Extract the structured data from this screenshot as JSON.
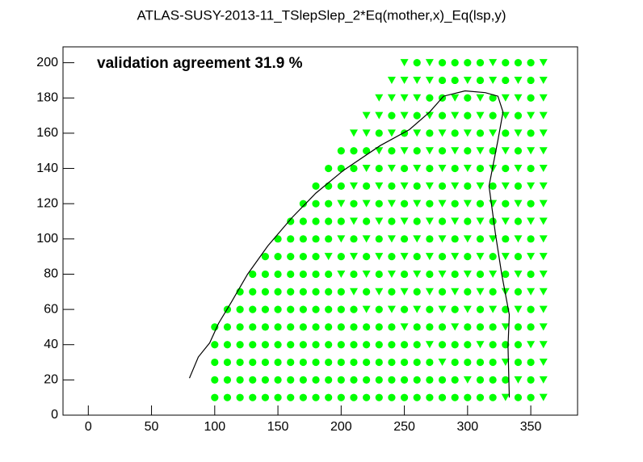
{
  "chart_data": {
    "type": "scatter",
    "title": "ATLAS-SUSY-2013-11_TSlepSlep_2*Eq(mother,x)_Eq(lsp,y)",
    "annotation": "validation agreement 31.9 %",
    "xlim": [
      -20,
      387
    ],
    "ylim": [
      0,
      209
    ],
    "xticks": [
      0,
      50,
      100,
      150,
      200,
      250,
      300,
      350
    ],
    "yticks": [
      0,
      20,
      40,
      60,
      80,
      100,
      120,
      140,
      160,
      180,
      200
    ],
    "grid": false,
    "series": [
      {
        "marker": "circle",
        "color": "#00ff00",
        "x": [
          260,
          280,
          290,
          300,
          310,
          330,
          340,
          350,
          280,
          290,
          310,
          330,
          350,
          270,
          280,
          300,
          320,
          350,
          240,
          260,
          280,
          300,
          320,
          340,
          230,
          250,
          270,
          290,
          310,
          330,
          350,
          200,
          210,
          220,
          240,
          260,
          280,
          300,
          320,
          340,
          190,
          200,
          210,
          230,
          250,
          270,
          290,
          310,
          330,
          350,
          180,
          190,
          200,
          220,
          240,
          260,
          280,
          300,
          320,
          340,
          170,
          180,
          190,
          210,
          230,
          250,
          270,
          290,
          310,
          330,
          350,
          160,
          170,
          180,
          190,
          200,
          220,
          240,
          260,
          280,
          300,
          320,
          340,
          150,
          160,
          170,
          180,
          190,
          210,
          230,
          250,
          270,
          290,
          310,
          330,
          350,
          140,
          150,
          160,
          170,
          180,
          200,
          220,
          240,
          260,
          280,
          300,
          320,
          340,
          130,
          140,
          150,
          160,
          170,
          180,
          190,
          210,
          230,
          250,
          270,
          290,
          310,
          330,
          350,
          120,
          130,
          140,
          150,
          160,
          170,
          180,
          190,
          200,
          220,
          240,
          260,
          280,
          300,
          320,
          340,
          110,
          120,
          130,
          140,
          150,
          160,
          170,
          180,
          190,
          200,
          210,
          230,
          250,
          270,
          290,
          310,
          330,
          350,
          100,
          110,
          120,
          130,
          140,
          150,
          160,
          170,
          180,
          190,
          200,
          210,
          220,
          230,
          240,
          260,
          270,
          280,
          300,
          310,
          320,
          340,
          350,
          100,
          110,
          120,
          130,
          140,
          150,
          160,
          170,
          180,
          190,
          200,
          210,
          220,
          230,
          240,
          250,
          260,
          280,
          290,
          300,
          320,
          330,
          340,
          100,
          110,
          120,
          130,
          140,
          150,
          160,
          170,
          180,
          190,
          200,
          210,
          220,
          230,
          240,
          250,
          260,
          270,
          290,
          300,
          310,
          320,
          340,
          350,
          100,
          110,
          120,
          130,
          140,
          150,
          160,
          170,
          180,
          190,
          200,
          210,
          220,
          230,
          240,
          250,
          260,
          270,
          280,
          290,
          310,
          320,
          330,
          350,
          100,
          110,
          120,
          130,
          140,
          150,
          160,
          170,
          180,
          190,
          200,
          210,
          220,
          230,
          240,
          250,
          260,
          270,
          280,
          290,
          300,
          310,
          320,
          340,
          350
        ],
        "values": [
          200,
          200,
          200,
          200,
          200,
          200,
          200,
          200,
          190,
          190,
          190,
          190,
          190,
          180,
          180,
          180,
          180,
          180,
          170,
          170,
          170,
          170,
          170,
          170,
          160,
          160,
          160,
          160,
          160,
          160,
          160,
          150,
          150,
          150,
          150,
          150,
          150,
          150,
          150,
          150,
          140,
          140,
          140,
          140,
          140,
          140,
          140,
          140,
          140,
          140,
          130,
          130,
          130,
          130,
          130,
          130,
          130,
          130,
          130,
          130,
          120,
          120,
          120,
          120,
          120,
          120,
          120,
          120,
          120,
          120,
          120,
          110,
          110,
          110,
          110,
          110,
          110,
          110,
          110,
          110,
          110,
          110,
          110,
          100,
          100,
          100,
          100,
          100,
          100,
          100,
          100,
          100,
          100,
          100,
          100,
          100,
          90,
          90,
          90,
          90,
          90,
          90,
          90,
          90,
          90,
          90,
          90,
          90,
          90,
          80,
          80,
          80,
          80,
          80,
          80,
          80,
          80,
          80,
          80,
          80,
          80,
          80,
          80,
          80,
          70,
          70,
          70,
          70,
          70,
          70,
          70,
          70,
          70,
          70,
          70,
          70,
          70,
          70,
          70,
          70,
          60,
          60,
          60,
          60,
          60,
          60,
          60,
          60,
          60,
          60,
          60,
          60,
          60,
          60,
          60,
          60,
          60,
          60,
          50,
          50,
          50,
          50,
          50,
          50,
          50,
          50,
          50,
          50,
          50,
          50,
          50,
          50,
          50,
          50,
          50,
          50,
          50,
          50,
          50,
          50,
          50,
          40,
          40,
          40,
          40,
          40,
          40,
          40,
          40,
          40,
          40,
          40,
          40,
          40,
          40,
          40,
          40,
          40,
          40,
          40,
          40,
          40,
          40,
          40,
          30,
          30,
          30,
          30,
          30,
          30,
          30,
          30,
          30,
          30,
          30,
          30,
          30,
          30,
          30,
          30,
          30,
          30,
          30,
          30,
          30,
          30,
          30,
          30,
          20,
          20,
          20,
          20,
          20,
          20,
          20,
          20,
          20,
          20,
          20,
          20,
          20,
          20,
          20,
          20,
          20,
          20,
          20,
          20,
          20,
          20,
          20,
          20,
          10,
          10,
          10,
          10,
          10,
          10,
          10,
          10,
          10,
          10,
          10,
          10,
          10,
          10,
          10,
          10,
          10,
          10,
          10,
          10,
          10,
          10,
          10,
          10,
          10
        ]
      },
      {
        "marker": "triangle-down",
        "color": "#00ff00",
        "x": [
          250,
          270,
          320,
          360,
          240,
          250,
          260,
          270,
          300,
          320,
          340,
          360,
          230,
          240,
          250,
          260,
          290,
          310,
          330,
          340,
          360,
          220,
          230,
          250,
          270,
          290,
          310,
          330,
          350,
          360,
          210,
          220,
          240,
          260,
          280,
          300,
          320,
          340,
          360,
          230,
          250,
          270,
          290,
          310,
          330,
          350,
          360,
          220,
          240,
          260,
          280,
          300,
          320,
          340,
          360,
          210,
          230,
          250,
          270,
          290,
          310,
          330,
          350,
          360,
          200,
          220,
          240,
          260,
          280,
          300,
          320,
          340,
          360,
          210,
          230,
          250,
          270,
          290,
          310,
          330,
          350,
          360,
          200,
          220,
          240,
          260,
          280,
          300,
          320,
          340,
          360,
          190,
          210,
          230,
          250,
          270,
          290,
          310,
          330,
          350,
          360,
          200,
          220,
          240,
          260,
          280,
          300,
          320,
          340,
          360,
          210,
          230,
          250,
          270,
          290,
          310,
          330,
          350,
          360,
          220,
          240,
          260,
          280,
          300,
          320,
          340,
          360,
          250,
          290,
          330,
          360,
          270,
          310,
          350,
          360,
          280,
          330,
          360,
          300,
          340,
          360,
          330,
          360
        ],
        "values": [
          200,
          200,
          200,
          200,
          190,
          190,
          190,
          190,
          190,
          190,
          190,
          190,
          180,
          180,
          180,
          180,
          180,
          180,
          180,
          180,
          180,
          170,
          170,
          170,
          170,
          170,
          170,
          170,
          170,
          170,
          160,
          160,
          160,
          160,
          160,
          160,
          160,
          160,
          160,
          150,
          150,
          150,
          150,
          150,
          150,
          150,
          150,
          140,
          140,
          140,
          140,
          140,
          140,
          140,
          140,
          130,
          130,
          130,
          130,
          130,
          130,
          130,
          130,
          130,
          120,
          120,
          120,
          120,
          120,
          120,
          120,
          120,
          120,
          110,
          110,
          110,
          110,
          110,
          110,
          110,
          110,
          110,
          100,
          100,
          100,
          100,
          100,
          100,
          100,
          100,
          100,
          90,
          90,
          90,
          90,
          90,
          90,
          90,
          90,
          90,
          90,
          80,
          80,
          80,
          80,
          80,
          80,
          80,
          80,
          80,
          70,
          70,
          70,
          70,
          70,
          70,
          70,
          70,
          70,
          60,
          60,
          60,
          60,
          60,
          60,
          60,
          60,
          50,
          50,
          50,
          50,
          40,
          40,
          40,
          40,
          30,
          30,
          30,
          20,
          20,
          20,
          10,
          10
        ]
      },
      {
        "type": "line",
        "color": "#000000",
        "x": [
          80,
          87,
          96,
          103,
          113,
          126,
          142,
          161,
          180,
          202,
          231,
          254,
          270,
          281,
          298,
          314,
          324,
          328,
          324,
          317,
          322,
          327,
          333,
          332,
          333
        ],
        "values": [
          21,
          33,
          41,
          52,
          64,
          80,
          96,
          112,
          126,
          139,
          153,
          162,
          172,
          181,
          184,
          183,
          181,
          172,
          156,
          130,
          103,
          80,
          57,
          39,
          10
        ]
      }
    ]
  }
}
